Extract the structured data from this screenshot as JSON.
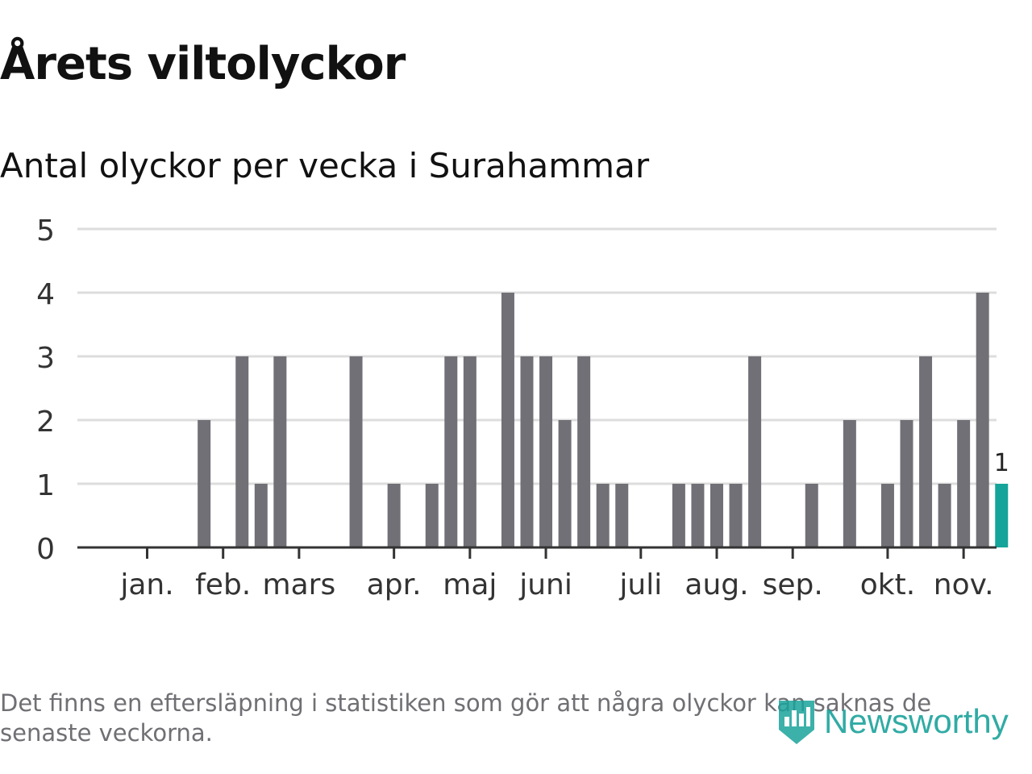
{
  "title": "Årets viltolyckor",
  "subtitle": "Antal olyckor per vecka i Surahammar",
  "footnote": "Det finns en eftersläpning i statistiken som gör att några olyckor kan saknas de senaste veckorna.",
  "brand": "Newsworthy",
  "colors": {
    "bar": "#717076",
    "highlight": "#15a499",
    "grid": "#dddddd",
    "axis": "#333333",
    "text": "#111111"
  },
  "chart_data": {
    "type": "bar",
    "xlabel": "",
    "ylabel": "",
    "ylim": [
      0,
      5
    ],
    "yticks": [
      0,
      1,
      2,
      3,
      4,
      5
    ],
    "grid": true,
    "x": [
      1,
      2,
      3,
      4,
      5,
      6,
      7,
      8,
      9,
      10,
      11,
      12,
      13,
      14,
      15,
      16,
      17,
      18,
      19,
      20,
      21,
      22,
      23,
      24,
      25,
      26,
      27,
      28,
      29,
      30,
      31,
      32,
      33,
      34,
      35,
      36,
      37,
      38,
      39,
      40,
      41,
      42,
      43,
      44,
      45,
      46
    ],
    "values": [
      0,
      0,
      0,
      2,
      0,
      3,
      1,
      3,
      0,
      0,
      0,
      3,
      0,
      1,
      0,
      1,
      3,
      3,
      0,
      4,
      3,
      3,
      2,
      3,
      1,
      1,
      0,
      0,
      1,
      1,
      1,
      1,
      3,
      0,
      0,
      1,
      0,
      2,
      0,
      1,
      2,
      3,
      1,
      2,
      4,
      1
    ],
    "highlight_index": 45,
    "highlight_label": "1",
    "month_labels": [
      "jan.",
      "feb.",
      "mars",
      "apr.",
      "maj",
      "juni",
      "juli",
      "aug.",
      "sep.",
      "okt.",
      "nov."
    ],
    "month_ticks": [
      1,
      5,
      9,
      14,
      18,
      22,
      27,
      31,
      35,
      40,
      44
    ]
  }
}
